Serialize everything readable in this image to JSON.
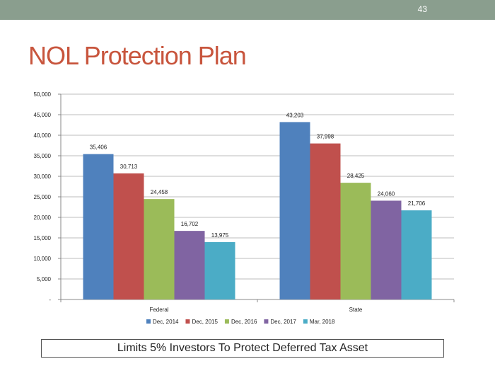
{
  "slide": {
    "page_number": "43",
    "title": "NOL Protection Plan",
    "caption": "Limits 5% Investors To Protect Deferred Tax Asset"
  },
  "colors": {
    "topbar": "#8a9e8e",
    "title": "#c8553d",
    "series": [
      "#4f81bd",
      "#c0504d",
      "#9bbb59",
      "#8064a2",
      "#4bacc6"
    ]
  },
  "chart_data": {
    "type": "bar",
    "categories": [
      "Federal",
      "State"
    ],
    "series": [
      {
        "name": "Dec, 2014",
        "values": [
          35406,
          43203
        ],
        "labels": [
          "35,406",
          "43,203"
        ]
      },
      {
        "name": "Dec, 2015",
        "values": [
          30713,
          37998
        ],
        "labels": [
          "30,713",
          "37,998"
        ]
      },
      {
        "name": "Dec, 2016",
        "values": [
          24458,
          28425
        ],
        "labels": [
          "24,458",
          "28,425"
        ]
      },
      {
        "name": "Dec, 2017",
        "values": [
          16702,
          24060
        ],
        "labels": [
          "16,702",
          "24,060"
        ]
      },
      {
        "name": "Mar, 2018",
        "values": [
          13975,
          21706
        ],
        "labels": [
          "13,975",
          "21,706"
        ]
      }
    ],
    "yticks": [
      0,
      5000,
      10000,
      15000,
      20000,
      25000,
      30000,
      35000,
      40000,
      45000,
      50000
    ],
    "ytick_labels": [
      "-",
      "5,000",
      "10,000",
      "15,000",
      "20,000",
      "25,000",
      "30,000",
      "35,000",
      "40,000",
      "45,000",
      "50,000"
    ],
    "ylim": [
      0,
      50000
    ],
    "grid": true,
    "legend_position": "bottom",
    "title": "",
    "xlabel": "",
    "ylabel": ""
  }
}
